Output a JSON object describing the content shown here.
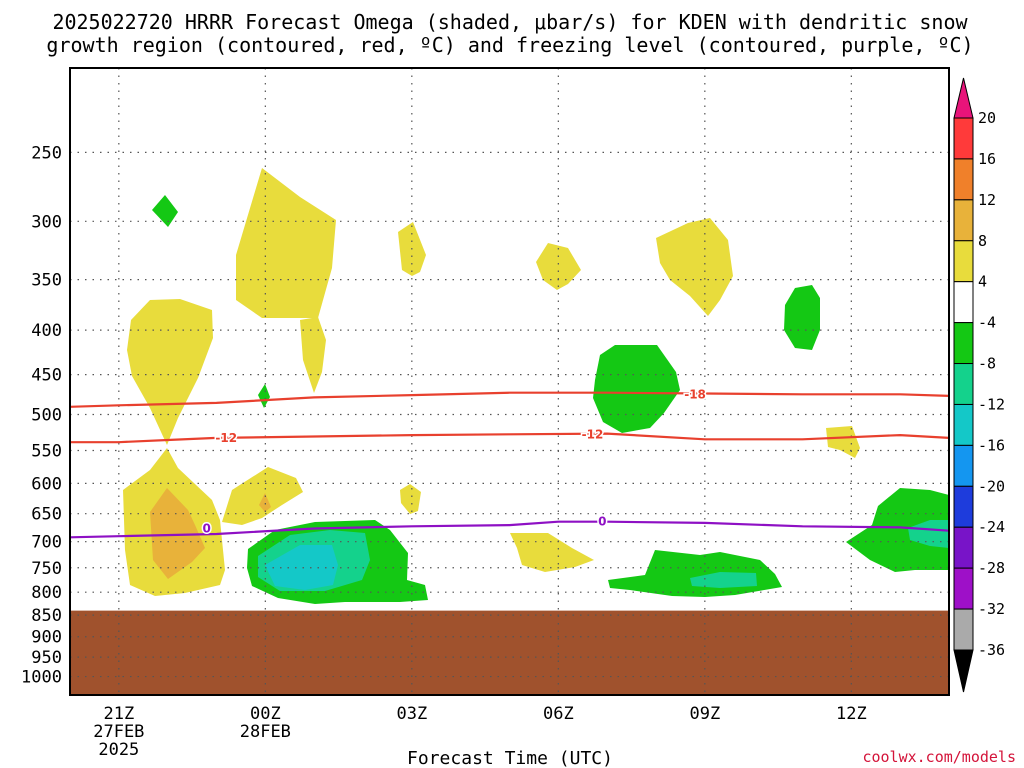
{
  "title_line1": "2025022720 HRRR Forecast Omega (shaded, μbar/s) for KDEN with dendritic snow",
  "title_line2": "growth region (contoured, red, ºC) and freezing level (contoured, purple, ºC)",
  "credit": "coolwx.com/models",
  "chart_data": {
    "type": "heatmap",
    "xlabel": "Forecast Time (UTC)",
    "ylabel": "",
    "x_ticks": [
      {
        "label": "21Z",
        "sub1": "27FEB",
        "sub2": "2025",
        "hour": 0
      },
      {
        "label": "00Z",
        "sub1": "28FEB",
        "sub2": "",
        "hour": 3
      },
      {
        "label": "03Z",
        "sub1": "",
        "sub2": "",
        "hour": 6
      },
      {
        "label": "06Z",
        "sub1": "",
        "sub2": "",
        "hour": 9
      },
      {
        "label": "09Z",
        "sub1": "",
        "sub2": "",
        "hour": 12
      },
      {
        "label": "12Z",
        "sub1": "",
        "sub2": "",
        "hour": 15
      }
    ],
    "xlim_hours": [
      -1,
      17
    ],
    "y_ticks": [
      250,
      300,
      350,
      400,
      450,
      500,
      550,
      600,
      650,
      700,
      750,
      800,
      850,
      900,
      950,
      1000
    ],
    "ylim_hpa": [
      200,
      1050
    ],
    "yscale": "log",
    "grid": true,
    "ground_top_hpa": 840,
    "colorbar": {
      "tick_labels": [
        "20",
        "16",
        "12",
        "8",
        "4",
        "-4",
        "-8",
        "-12",
        "-16",
        "-20",
        "-24",
        "-28",
        "-32",
        "-36"
      ],
      "colors": [
        "#ff3a3a",
        "#f0802a",
        "#e8b23a",
        "#e8dc3c",
        "#ffffff",
        "#14c814",
        "#14d28c",
        "#14c8c8",
        "#1496f0",
        "#1e3cdc",
        "#7814c8",
        "#9e10c8",
        "#aaaaaa"
      ],
      "top_color": "#e8147a",
      "bottom_color": "#000000"
    },
    "contours": [
      {
        "name": "-18",
        "color": "#e8402e",
        "label": "-18",
        "x": [
          -1,
          0,
          2,
          4,
          6,
          8,
          10,
          12,
          14,
          16,
          17
        ],
        "y": [
          490,
          488,
          485,
          478,
          475,
          472,
          472,
          473,
          474,
          474,
          476
        ]
      },
      {
        "name": "-12",
        "color": "#e8402e",
        "label": "-12",
        "x": [
          -1,
          0,
          1,
          2,
          4,
          6,
          8,
          10,
          12,
          14,
          16,
          17
        ],
        "y": [
          538,
          538,
          535,
          532,
          530,
          528,
          527,
          526,
          534,
          534,
          528,
          532
        ]
      },
      {
        "name": "0",
        "color": "#8e10c4",
        "label": "0",
        "x": [
          -1,
          0,
          2,
          4,
          6,
          8,
          9,
          10,
          12,
          14,
          16,
          17
        ],
        "y": [
          692,
          690,
          686,
          676,
          672,
          670,
          664,
          664,
          666,
          672,
          674,
          680
        ]
      }
    ]
  }
}
